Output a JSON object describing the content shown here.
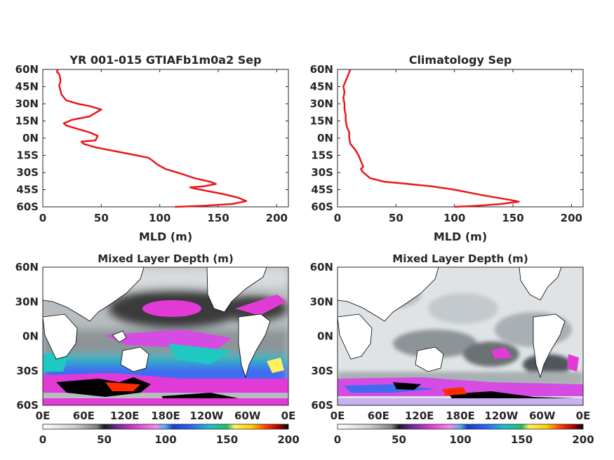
{
  "chart_data": [
    {
      "type": "line",
      "title": "YR 001-015 GTIAFb1m0a2 Sep",
      "xlabel": "MLD (m)",
      "xlim": [
        0,
        210
      ],
      "ylim": [
        -60,
        60
      ],
      "x_ticks": [
        "0",
        "50",
        "100",
        "150",
        "200"
      ],
      "y_ticks": [
        "60N",
        "45N",
        "30N",
        "15N",
        "0N",
        "15S",
        "30S",
        "45S",
        "60S"
      ],
      "series": [
        {
          "color": "#e8191c",
          "points": [
            [
              113,
              -60
            ],
            [
              138,
              -59
            ],
            [
              162,
              -57.5
            ],
            [
              174,
              -55
            ],
            [
              167,
              -52
            ],
            [
              155,
              -49
            ],
            [
              140,
              -46
            ],
            [
              130,
              -44
            ],
            [
              126,
              -43
            ],
            [
              138,
              -42
            ],
            [
              148,
              -40
            ],
            [
              143,
              -38
            ],
            [
              130,
              -35
            ],
            [
              115,
              -30
            ],
            [
              105,
              -27
            ],
            [
              98,
              -23
            ],
            [
              93,
              -19
            ],
            [
              90,
              -17
            ],
            [
              75,
              -14
            ],
            [
              60,
              -11
            ],
            [
              45,
              -8
            ],
            [
              35,
              -5
            ],
            [
              33,
              -3
            ],
            [
              45,
              -2
            ],
            [
              47,
              2
            ],
            [
              40,
              5
            ],
            [
              30,
              8
            ],
            [
              20,
              11
            ],
            [
              18,
              13
            ],
            [
              25,
              16
            ],
            [
              40,
              19
            ],
            [
              45,
              22
            ],
            [
              50,
              25
            ],
            [
              40,
              28
            ],
            [
              30,
              30
            ],
            [
              20,
              33
            ],
            [
              16,
              38
            ],
            [
              15,
              42
            ],
            [
              14,
              46
            ],
            [
              15,
              49
            ],
            [
              15,
              52
            ],
            [
              14,
              56
            ],
            [
              12,
              58
            ],
            [
              13,
              60
            ]
          ]
        }
      ]
    },
    {
      "type": "line",
      "title": "Climatology Sep",
      "xlabel": "MLD (m)",
      "xlim": [
        0,
        210
      ],
      "ylim": [
        -60,
        60
      ],
      "x_ticks": [
        "0",
        "50",
        "100",
        "150",
        "200"
      ],
      "y_ticks": [
        "60N",
        "45N",
        "30N",
        "15N",
        "0N",
        "15S",
        "30S",
        "45S",
        "60S"
      ],
      "series": [
        {
          "color": "#e8191c",
          "points": [
            [
              100,
              -60
            ],
            [
              120,
              -59
            ],
            [
              140,
              -57.5
            ],
            [
              155,
              -55.5
            ],
            [
              148,
              -54
            ],
            [
              125,
              -50
            ],
            [
              100,
              -45
            ],
            [
              80,
              -42
            ],
            [
              60,
              -40
            ],
            [
              40,
              -38
            ],
            [
              28,
              -35
            ],
            [
              22,
              -30
            ],
            [
              20,
              -27
            ],
            [
              22,
              -25
            ],
            [
              20,
              -20
            ],
            [
              18,
              -15
            ],
            [
              15,
              -10
            ],
            [
              11,
              -5
            ],
            [
              10,
              0
            ],
            [
              10,
              5
            ],
            [
              8,
              10
            ],
            [
              7,
              15
            ],
            [
              7,
              20
            ],
            [
              6,
              25
            ],
            [
              6,
              30
            ],
            [
              5,
              35
            ],
            [
              6,
              40
            ],
            [
              5,
              45
            ],
            [
              7,
              50
            ],
            [
              9,
              55
            ],
            [
              11,
              60
            ]
          ]
        }
      ]
    },
    {
      "type": "heatmap",
      "title": "Mixed Layer Depth (m)",
      "x_ticks": [
        "0E",
        "60E",
        "120E",
        "180E",
        "120W",
        "60W",
        "0E"
      ],
      "y_ticks": [
        "60N",
        "30N",
        "0N",
        "30S",
        "60S"
      ],
      "colorbar": {
        "range": [
          0,
          200
        ],
        "ticks": [
          "0",
          "50",
          "100",
          "150",
          "200"
        ]
      }
    },
    {
      "type": "heatmap",
      "title": "Mixed Layer Depth (m)",
      "x_ticks": [
        "0E",
        "60E",
        "120E",
        "180E",
        "120W",
        "60W",
        "0E"
      ],
      "y_ticks": [
        "60N",
        "30N",
        "0N",
        "30S",
        "60S"
      ],
      "colorbar": {
        "range": [
          0,
          200
        ],
        "ticks": [
          "0",
          "50",
          "100",
          "150",
          "200"
        ]
      }
    }
  ]
}
